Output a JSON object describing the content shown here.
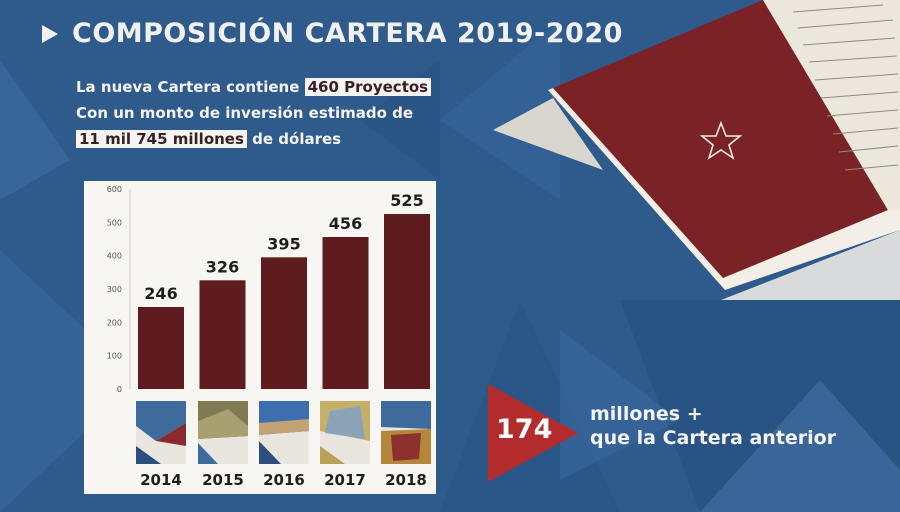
{
  "header": {
    "title": "COMPOSICIÓN CARTERA 2019-2020"
  },
  "info": {
    "line1_prefix": "La nueva Cartera contiene",
    "line1_highlight": "460 Proyectos",
    "line2": "Con un monto de inversión estimado de",
    "line3_highlight": "11 mil 745 millones",
    "line3_suffix": "de dólares"
  },
  "chart_data": {
    "type": "bar",
    "categories": [
      "2014",
      "2015",
      "2016",
      "2017",
      "2018"
    ],
    "values": [
      246,
      326,
      395,
      456,
      525
    ],
    "ylim": [
      0,
      600
    ],
    "yticks": [
      0,
      100,
      200,
      300,
      400,
      500,
      600
    ],
    "data_labels": [
      "246",
      "326",
      "395",
      "456",
      "525"
    ],
    "title": "",
    "xlabel": "",
    "ylabel": "",
    "grid": false,
    "bar_color": "#5e1c1f"
  },
  "badge": {
    "value": "174",
    "color": "#b42b2b"
  },
  "note": {
    "line1": "millones +",
    "line2": "que la Cartera anterior"
  },
  "colors": {
    "background": "#2f5a8c",
    "book_cover": "#7a2226",
    "accent": "#b42b2b"
  },
  "icons": {
    "arrow": "play-icon",
    "book_star": "star-icon"
  }
}
